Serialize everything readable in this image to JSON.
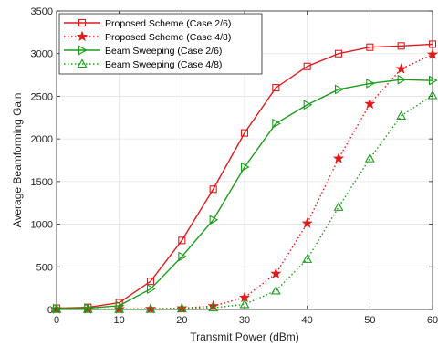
{
  "chart_data": {
    "type": "line",
    "xlabel": "Transmit Power (dBm)",
    "ylabel": "Average Beamforming Gain",
    "xlim": [
      0,
      60
    ],
    "ylim": [
      0,
      3500
    ],
    "xticks": [
      0,
      10,
      20,
      30,
      40,
      50,
      60
    ],
    "yticks": [
      0,
      500,
      1000,
      1500,
      2000,
      2500,
      3000,
      3500
    ],
    "grid": true,
    "legend_position": "top-left",
    "x": [
      0,
      5,
      10,
      15,
      20,
      25,
      30,
      35,
      40,
      45,
      50,
      55,
      60
    ],
    "series": [
      {
        "name": "Proposed Scheme (Case 2/6)",
        "color": "#e31a1c",
        "line": "solid",
        "marker": "square",
        "values": [
          15,
          25,
          80,
          330,
          810,
          1410,
          2070,
          2600,
          2850,
          3000,
          3075,
          3090,
          3110
        ]
      },
      {
        "name": "Proposed Scheme (Case 4/8)",
        "color": "#e31a1c",
        "line": "dotted",
        "marker": "star",
        "values": [
          5,
          5,
          5,
          8,
          15,
          40,
          140,
          420,
          1010,
          1770,
          2410,
          2820,
          2990
        ]
      },
      {
        "name": "Beam Sweeping (Case 2/6)",
        "color": "#1a9e1a",
        "line": "solid",
        "marker": "triangle-right",
        "values": [
          10,
          15,
          45,
          240,
          620,
          1050,
          1670,
          2180,
          2400,
          2580,
          2650,
          2695,
          2685
        ]
      },
      {
        "name": "Beam Sweeping (Case 4/8)",
        "color": "#1a9e1a",
        "line": "dotted",
        "marker": "triangle-up",
        "values": [
          3,
          3,
          3,
          5,
          10,
          20,
          60,
          220,
          590,
          1200,
          1770,
          2270,
          2510
        ]
      }
    ]
  }
}
